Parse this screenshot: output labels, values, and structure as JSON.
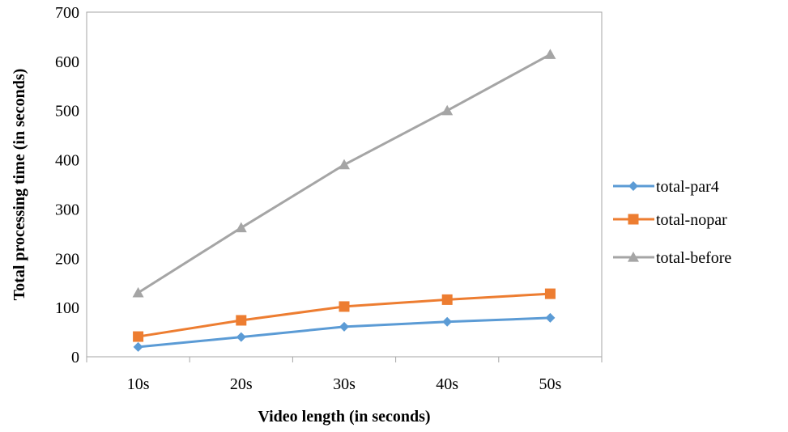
{
  "chart_data": {
    "type": "line",
    "categories": [
      "10s",
      "20s",
      "30s",
      "40s",
      "50s"
    ],
    "series": [
      {
        "name": "total-par4",
        "values": [
          20,
          40,
          61,
          71,
          79
        ],
        "color": "#5b9bd5",
        "marker": "diamond"
      },
      {
        "name": "total-nopar",
        "values": [
          41,
          74,
          102,
          116,
          128
        ],
        "color": "#ed7d31",
        "marker": "square"
      },
      {
        "name": "total-before",
        "values": [
          130,
          262,
          390,
          500,
          614
        ],
        "color": "#a5a5a5",
        "marker": "triangle"
      }
    ],
    "title": "",
    "xlabel": "Video length (in seconds)",
    "ylabel": "Total processing time (in seconds)",
    "ylim": [
      0,
      700
    ],
    "yticks": [
      0,
      100,
      200,
      300,
      400,
      500,
      600,
      700
    ],
    "grid": false,
    "legend_position": "right"
  }
}
